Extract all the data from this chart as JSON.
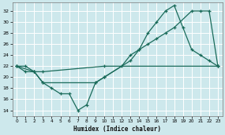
{
  "xlabel": "Humidex (Indice chaleur)",
  "bg_color": "#cde8ec",
  "grid_color": "#ffffff",
  "line_color": "#1a6b5a",
  "xlim": [
    -0.5,
    23.5
  ],
  "ylim": [
    13,
    33.5
  ],
  "xticks": [
    0,
    1,
    2,
    3,
    4,
    5,
    6,
    7,
    8,
    9,
    10,
    11,
    12,
    13,
    14,
    15,
    16,
    17,
    18,
    19,
    20,
    21,
    22,
    23
  ],
  "yticks": [
    14,
    16,
    18,
    20,
    22,
    24,
    26,
    28,
    30,
    32
  ],
  "line1_x": [
    0,
    1,
    2,
    3,
    10,
    23
  ],
  "line1_y": [
    22,
    22,
    21,
    21,
    22,
    22
  ],
  "line2_x": [
    0,
    1,
    2,
    3,
    9,
    10,
    13,
    14,
    15,
    16,
    17,
    18,
    19,
    20,
    21,
    22,
    23
  ],
  "line2_y": [
    22,
    21,
    21,
    19,
    19,
    20,
    23,
    25,
    28,
    30,
    32,
    33,
    29,
    25,
    24,
    23,
    22
  ],
  "line3_x": [
    0,
    2,
    3,
    4,
    5,
    6,
    7,
    8,
    9,
    10,
    12,
    13,
    14,
    15,
    16,
    17,
    18,
    20,
    21,
    22,
    23
  ],
  "line3_y": [
    22,
    21,
    19,
    18,
    17,
    17,
    14,
    15,
    19,
    20,
    22,
    24,
    25,
    26,
    27,
    28,
    29,
    32,
    32,
    32,
    22
  ]
}
